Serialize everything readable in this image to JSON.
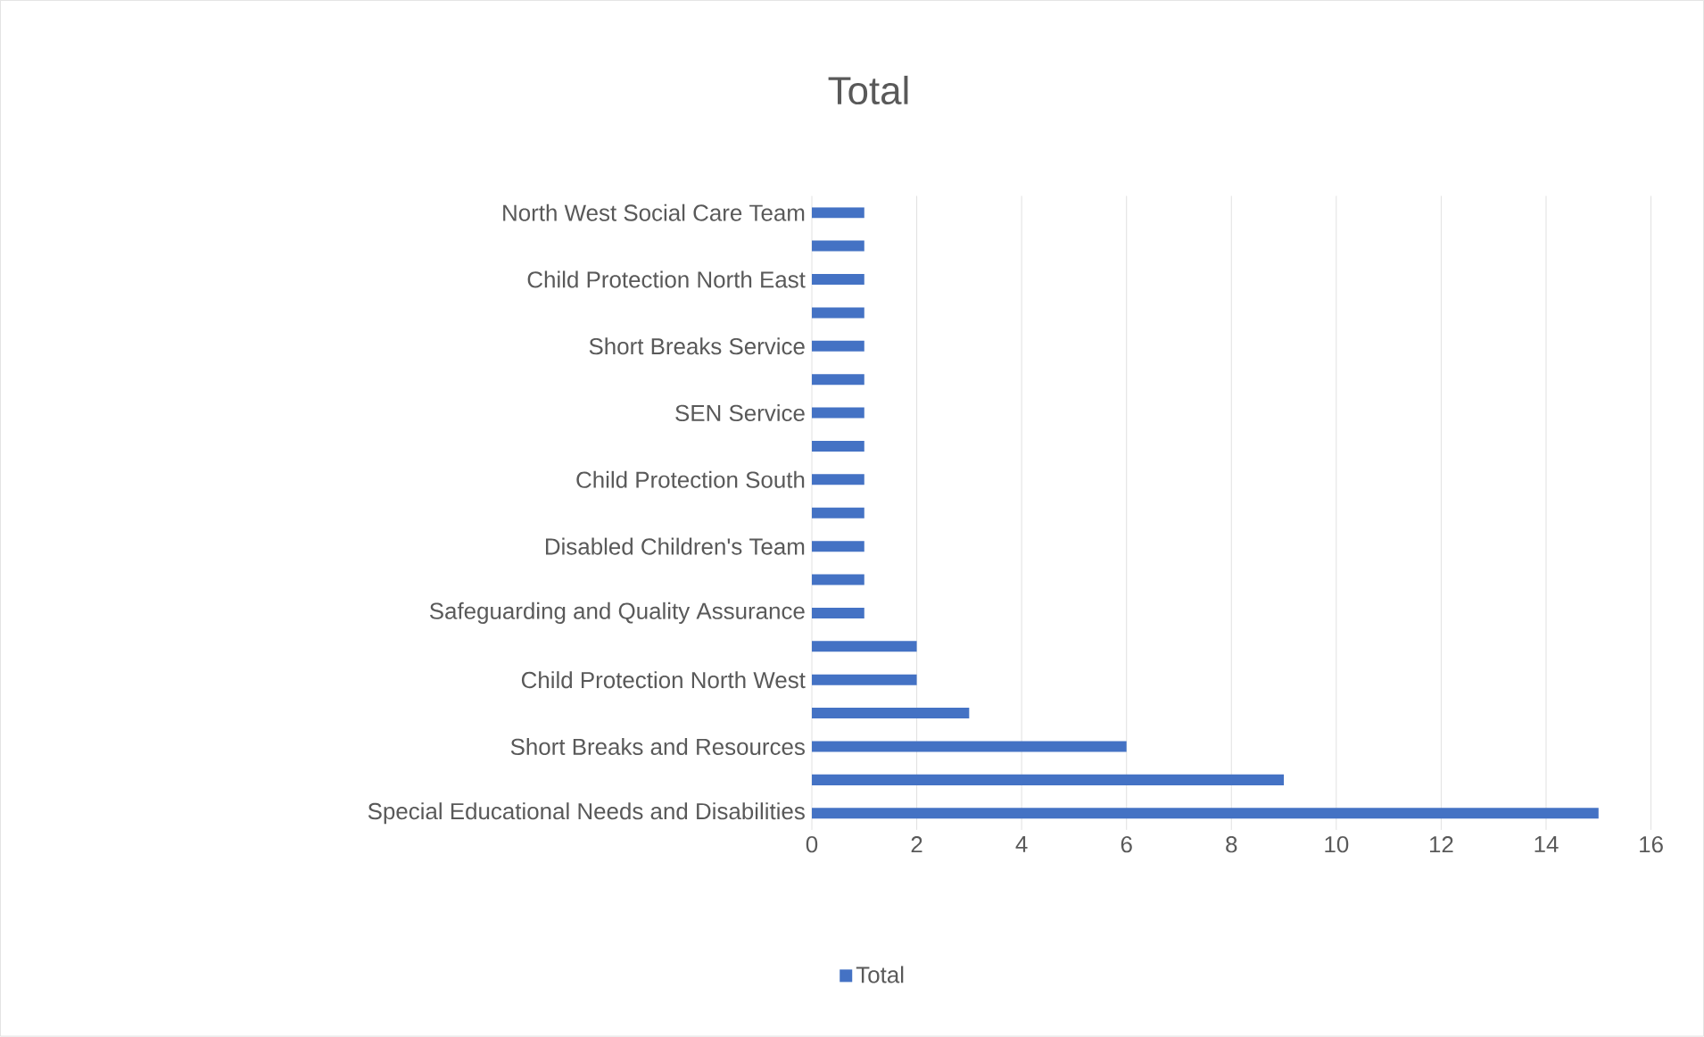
{
  "chart_data": {
    "type": "bar",
    "orientation": "horizontal",
    "title": "Total",
    "categories": [
      "North West Social Care Team",
      null,
      "Child Protection North East",
      null,
      "Short Breaks Service",
      null,
      "SEN Service",
      null,
      "Child Protection South",
      null,
      "Disabled Children's Team",
      null,
      "Safeguarding and Quality Assurance",
      null,
      "Child Protection North West",
      null,
      "Short Breaks and Resources",
      null,
      "Special Educational Needs and Disabilities"
    ],
    "series": [
      {
        "name": "Total",
        "color": "#4472c4",
        "values": [
          1,
          1,
          1,
          1,
          1,
          1,
          1,
          1,
          1,
          1,
          1,
          1,
          1,
          2,
          2,
          3,
          6,
          9,
          15
        ]
      }
    ],
    "xlim": [
      0,
      16
    ],
    "xticks": [
      0,
      2,
      4,
      6,
      8,
      10,
      12,
      14,
      16
    ],
    "grid": "x",
    "legend": "bottom"
  }
}
